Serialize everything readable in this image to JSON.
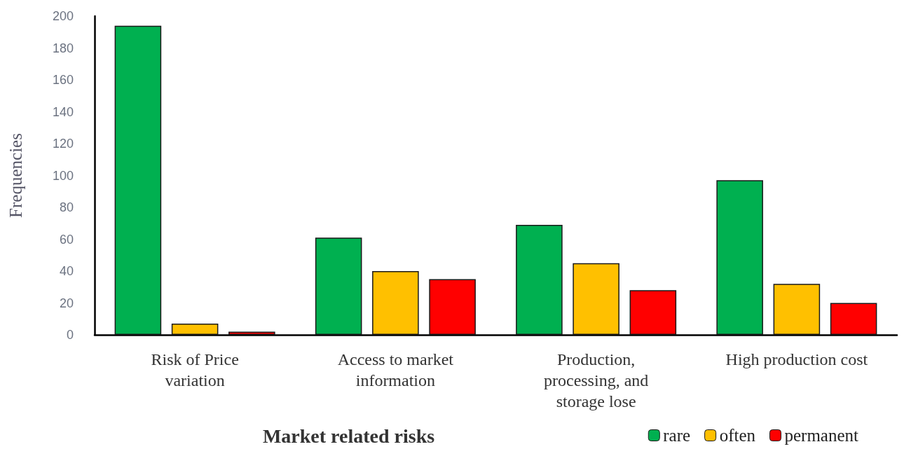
{
  "chart_data": {
    "type": "bar",
    "xlabel": "Market related risks",
    "ylabel": "Frequencies",
    "categories": [
      "Risk of Price variation",
      "Access to market information",
      "Production, processing, and storage lose",
      "High production cost"
    ],
    "series": [
      {
        "name": "rare",
        "color": "#00b050",
        "values": [
          194,
          61,
          69,
          97
        ]
      },
      {
        "name": "often",
        "color": "#ffc000",
        "values": [
          7,
          40,
          45,
          32
        ]
      },
      {
        "name": "permanent",
        "color": "#ff0000",
        "values": [
          2,
          35,
          28,
          20
        ]
      }
    ],
    "ylim": [
      0,
      200
    ],
    "yticks": [
      0,
      20,
      40,
      60,
      80,
      100,
      120,
      140,
      160,
      180,
      200
    ],
    "grid": false,
    "legend": "bottom right"
  }
}
